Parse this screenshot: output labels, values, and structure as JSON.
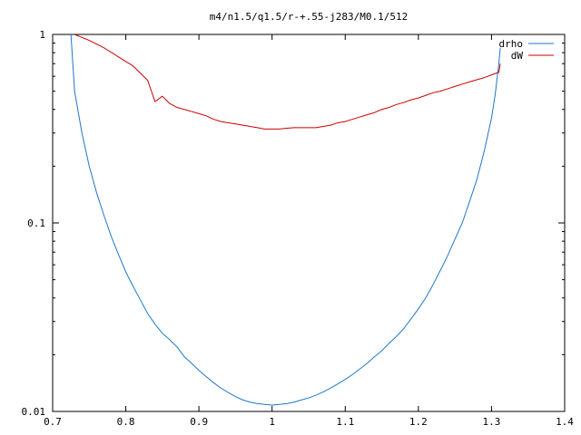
{
  "chart_data": {
    "type": "line",
    "title": "m4/n1.5/q1.5/r-+.55-j283/M0.1/512",
    "xlabel": "",
    "ylabel": "",
    "xlim": [
      0.7,
      1.4
    ],
    "ylim": [
      0.01,
      1
    ],
    "y_scale": "log",
    "grid": false,
    "legend_position": "top-right",
    "x_ticks": [
      "0.7",
      "0.8",
      "0.9",
      "1",
      "1.1",
      "1.2",
      "1.3",
      "1.4"
    ],
    "y_ticks": [
      "0.01",
      "0.1",
      "1"
    ],
    "series": [
      {
        "name": "drho",
        "color": "#1f77c8",
        "points": [
          [
            0.725,
            1.0
          ],
          [
            0.73,
            0.5
          ],
          [
            0.74,
            0.3
          ],
          [
            0.75,
            0.2
          ],
          [
            0.76,
            0.145
          ],
          [
            0.77,
            0.11
          ],
          [
            0.78,
            0.085
          ],
          [
            0.79,
            0.068
          ],
          [
            0.8,
            0.055
          ],
          [
            0.81,
            0.046
          ],
          [
            0.82,
            0.039
          ],
          [
            0.83,
            0.033
          ],
          [
            0.84,
            0.029
          ],
          [
            0.85,
            0.026
          ],
          [
            0.86,
            0.024
          ],
          [
            0.87,
            0.022
          ],
          [
            0.88,
            0.0195
          ],
          [
            0.89,
            0.018
          ],
          [
            0.9,
            0.0165
          ],
          [
            0.91,
            0.0153
          ],
          [
            0.92,
            0.0142
          ],
          [
            0.93,
            0.0133
          ],
          [
            0.94,
            0.0126
          ],
          [
            0.95,
            0.012
          ],
          [
            0.96,
            0.0115
          ],
          [
            0.97,
            0.0112
          ],
          [
            0.98,
            0.011
          ],
          [
            0.99,
            0.0109
          ],
          [
            1.0,
            0.0108
          ],
          [
            1.01,
            0.0109
          ],
          [
            1.02,
            0.011
          ],
          [
            1.03,
            0.0112
          ],
          [
            1.04,
            0.0115
          ],
          [
            1.05,
            0.0118
          ],
          [
            1.06,
            0.0122
          ],
          [
            1.07,
            0.0127
          ],
          [
            1.08,
            0.0133
          ],
          [
            1.09,
            0.014
          ],
          [
            1.1,
            0.0148
          ],
          [
            1.11,
            0.0157
          ],
          [
            1.12,
            0.0168
          ],
          [
            1.13,
            0.018
          ],
          [
            1.14,
            0.0195
          ],
          [
            1.15,
            0.021
          ],
          [
            1.16,
            0.023
          ],
          [
            1.17,
            0.025
          ],
          [
            1.18,
            0.0275
          ],
          [
            1.19,
            0.031
          ],
          [
            1.2,
            0.035
          ],
          [
            1.21,
            0.04
          ],
          [
            1.22,
            0.047
          ],
          [
            1.23,
            0.056
          ],
          [
            1.24,
            0.067
          ],
          [
            1.25,
            0.082
          ],
          [
            1.26,
            0.1
          ],
          [
            1.27,
            0.13
          ],
          [
            1.28,
            0.17
          ],
          [
            1.29,
            0.24
          ],
          [
            1.3,
            0.36
          ],
          [
            1.305,
            0.48
          ],
          [
            1.31,
            0.7
          ],
          [
            1.312,
            0.85
          ]
        ]
      },
      {
        "name": "dW",
        "color": "#cc0000",
        "points": [
          [
            0.73,
            1.0
          ],
          [
            0.75,
            0.93
          ],
          [
            0.77,
            0.85
          ],
          [
            0.79,
            0.76
          ],
          [
            0.81,
            0.68
          ],
          [
            0.83,
            0.57
          ],
          [
            0.835,
            0.5
          ],
          [
            0.84,
            0.44
          ],
          [
            0.85,
            0.47
          ],
          [
            0.86,
            0.43
          ],
          [
            0.87,
            0.41
          ],
          [
            0.88,
            0.4
          ],
          [
            0.89,
            0.39
          ],
          [
            0.9,
            0.38
          ],
          [
            0.91,
            0.37
          ],
          [
            0.92,
            0.355
          ],
          [
            0.93,
            0.345
          ],
          [
            0.94,
            0.34
          ],
          [
            0.95,
            0.335
          ],
          [
            0.96,
            0.33
          ],
          [
            0.97,
            0.325
          ],
          [
            0.98,
            0.32
          ],
          [
            0.99,
            0.315
          ],
          [
            1.0,
            0.315
          ],
          [
            1.01,
            0.315
          ],
          [
            1.02,
            0.318
          ],
          [
            1.03,
            0.32
          ],
          [
            1.04,
            0.32
          ],
          [
            1.05,
            0.32
          ],
          [
            1.06,
            0.32
          ],
          [
            1.07,
            0.325
          ],
          [
            1.08,
            0.33
          ],
          [
            1.09,
            0.34
          ],
          [
            1.1,
            0.345
          ],
          [
            1.11,
            0.355
          ],
          [
            1.12,
            0.365
          ],
          [
            1.13,
            0.375
          ],
          [
            1.14,
            0.385
          ],
          [
            1.15,
            0.4
          ],
          [
            1.16,
            0.41
          ],
          [
            1.17,
            0.425
          ],
          [
            1.18,
            0.435
          ],
          [
            1.19,
            0.45
          ],
          [
            1.2,
            0.46
          ],
          [
            1.21,
            0.475
          ],
          [
            1.22,
            0.49
          ],
          [
            1.23,
            0.5
          ],
          [
            1.24,
            0.515
          ],
          [
            1.25,
            0.53
          ],
          [
            1.26,
            0.545
          ],
          [
            1.27,
            0.56
          ],
          [
            1.28,
            0.575
          ],
          [
            1.29,
            0.59
          ],
          [
            1.3,
            0.61
          ],
          [
            1.31,
            0.63
          ],
          [
            1.312,
            0.7
          ]
        ]
      }
    ]
  }
}
